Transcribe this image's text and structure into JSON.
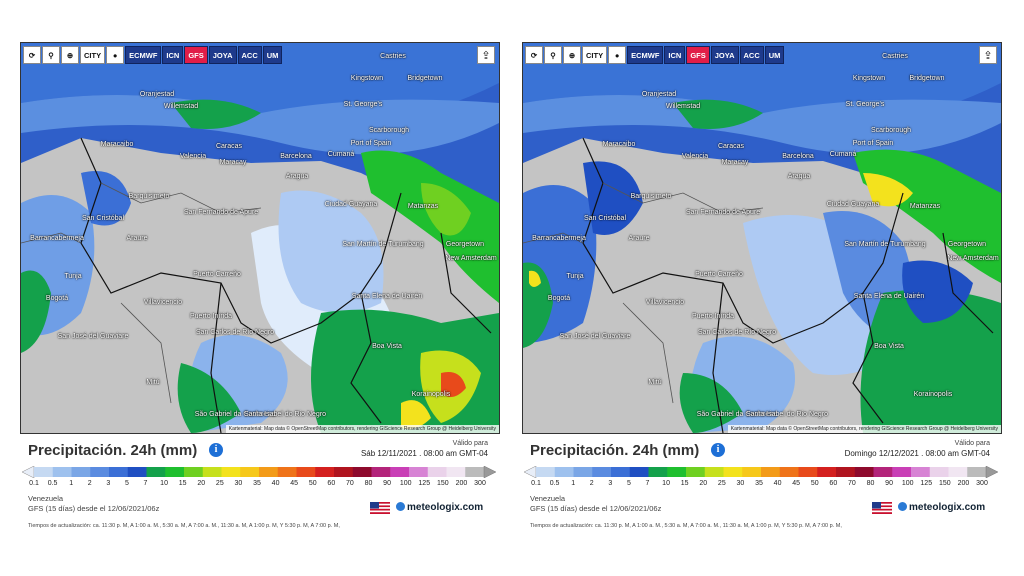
{
  "toolbar": {
    "icons": [
      "refresh-icon",
      "location-pin-icon",
      "zoom-icon",
      "city-icon",
      "dark-mode-icon"
    ],
    "city_label": "CITY",
    "models": [
      "ECMWF",
      "ICN",
      "GFS",
      "JOYA",
      "ACC",
      "UM"
    ],
    "active_model": "GFS",
    "share_icon": "share-icon"
  },
  "panels": [
    {
      "title": "Precipitación. 24h (mm)",
      "valid_label": "Válido para",
      "valid_date": "Sáb 12/11/2021 . 08:00 am GMT-04",
      "region": "Venezuela",
      "model_run": "GFS (15 días) desde el 12/06/2021/06z",
      "update_times": "Tiempos de actualización: ca. 11:30 p. M, A 1:00 a. M., 5:30 a. M, A 7:00 a. M., 11:30 a. M, A 1:00 p. M, Y 5:30 p. M, A 7:00 p. M,",
      "brand": "meteologix.com",
      "attribution": "Kartenmaterial: Map data © OpenStreetMap contributors, rendering GIScience Research Group @ Heidelberg University"
    },
    {
      "title": "Precipitación. 24h (mm)",
      "valid_label": "Válido para",
      "valid_date": "Domingo 12/12/2021 . 08:00 am GMT-04",
      "region": "Venezuela",
      "model_run": "GFS (15 días) desde el 12/06/2021/06z",
      "update_times": "Tiempos de actualización: ca. 11:30 p. M, A 1:00 a. M., 5:30 a. M, A 7:00 a. M., 11:30 a. M, A 1:00 p. M, Y 5:30 p. M, A 7:00 p. M,",
      "brand": "meteologix.com",
      "attribution": "Kartenmaterial: Map data © OpenStreetMap contributors, rendering GIScience Research Group @ Heidelberg University"
    }
  ],
  "scale": {
    "ticks": [
      "0.1",
      "0.5",
      "1",
      "2",
      "3",
      "5",
      "7",
      "10",
      "15",
      "20",
      "25",
      "30",
      "35",
      "40",
      "45",
      "50",
      "60",
      "70",
      "80",
      "90",
      "100",
      "125",
      "150",
      "200",
      "300"
    ],
    "colors": [
      "#c5d9f2",
      "#9ec1ee",
      "#7aa6e6",
      "#5a8be0",
      "#3b6fd6",
      "#1f4fc2",
      "#14a14b",
      "#1fbf2f",
      "#6fd021",
      "#c6e01c",
      "#f3e21d",
      "#f6c81a",
      "#f39b18",
      "#ef7319",
      "#e84a1b",
      "#d4201f",
      "#b0141f",
      "#8e0a2d",
      "#b3247a",
      "#c93fb6",
      "#d783d4",
      "#ead2ea",
      "#f1e6f2",
      "#bbbbbb"
    ]
  },
  "cities": [
    "Castries",
    "Kingstown",
    "Bridgetown",
    "St. George's",
    "Oranjestad",
    "Willemstad",
    "Scarborough",
    "Port of Spain",
    "Maracaibo",
    "Caracas",
    "Valencia",
    "Maracay",
    "Barcelona",
    "Cumaná",
    "Aragua",
    "Barquisimeto",
    "San Cristóbal",
    "Ciudad Guayana",
    "Matanzas",
    "Georgetown",
    "New Amsterdam",
    "Barrancabermeja",
    "Araure",
    "San Fernando de Apure",
    "San Martín de Turumbang",
    "Santa Elena de Uairén",
    "Tunja",
    "Bogotá",
    "Puerto Carreño",
    "Boa Vista",
    "San José del Guaviare",
    "Puerto Inírida",
    "San Carlos de Río Negro",
    "Korainopolis",
    "São Gabriel da Cachoeira",
    "Santa Isabel do Rio Negro",
    "Mitú",
    "Villavicencio"
  ]
}
